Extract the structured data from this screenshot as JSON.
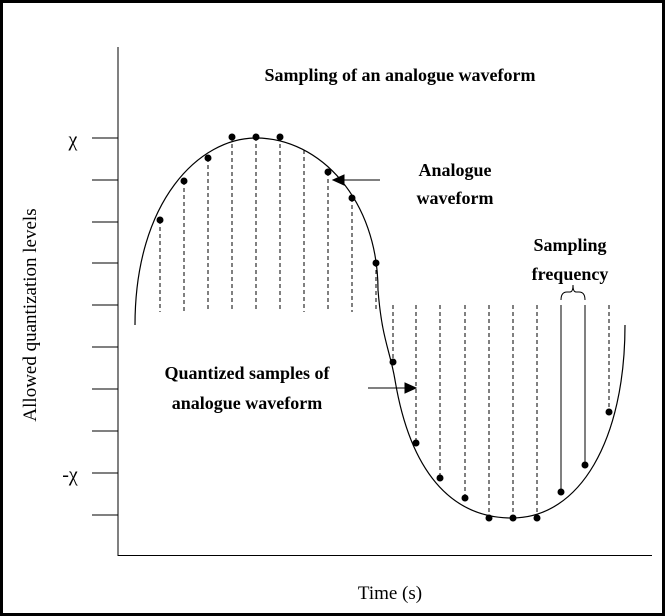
{
  "title": "Sampling of an analogue waveform",
  "y_axis": {
    "label": "Allowed quantization levels",
    "ticks": [
      "χ",
      "-χ"
    ]
  },
  "x_axis": {
    "label": "Time (s)"
  },
  "annotations": [
    {
      "lines": [
        "Analogue",
        "waveform"
      ]
    },
    {
      "lines": [
        "Sampling",
        "frequency"
      ]
    },
    {
      "lines": [
        "Quantized samples of",
        "analogue waveform"
      ]
    }
  ]
}
